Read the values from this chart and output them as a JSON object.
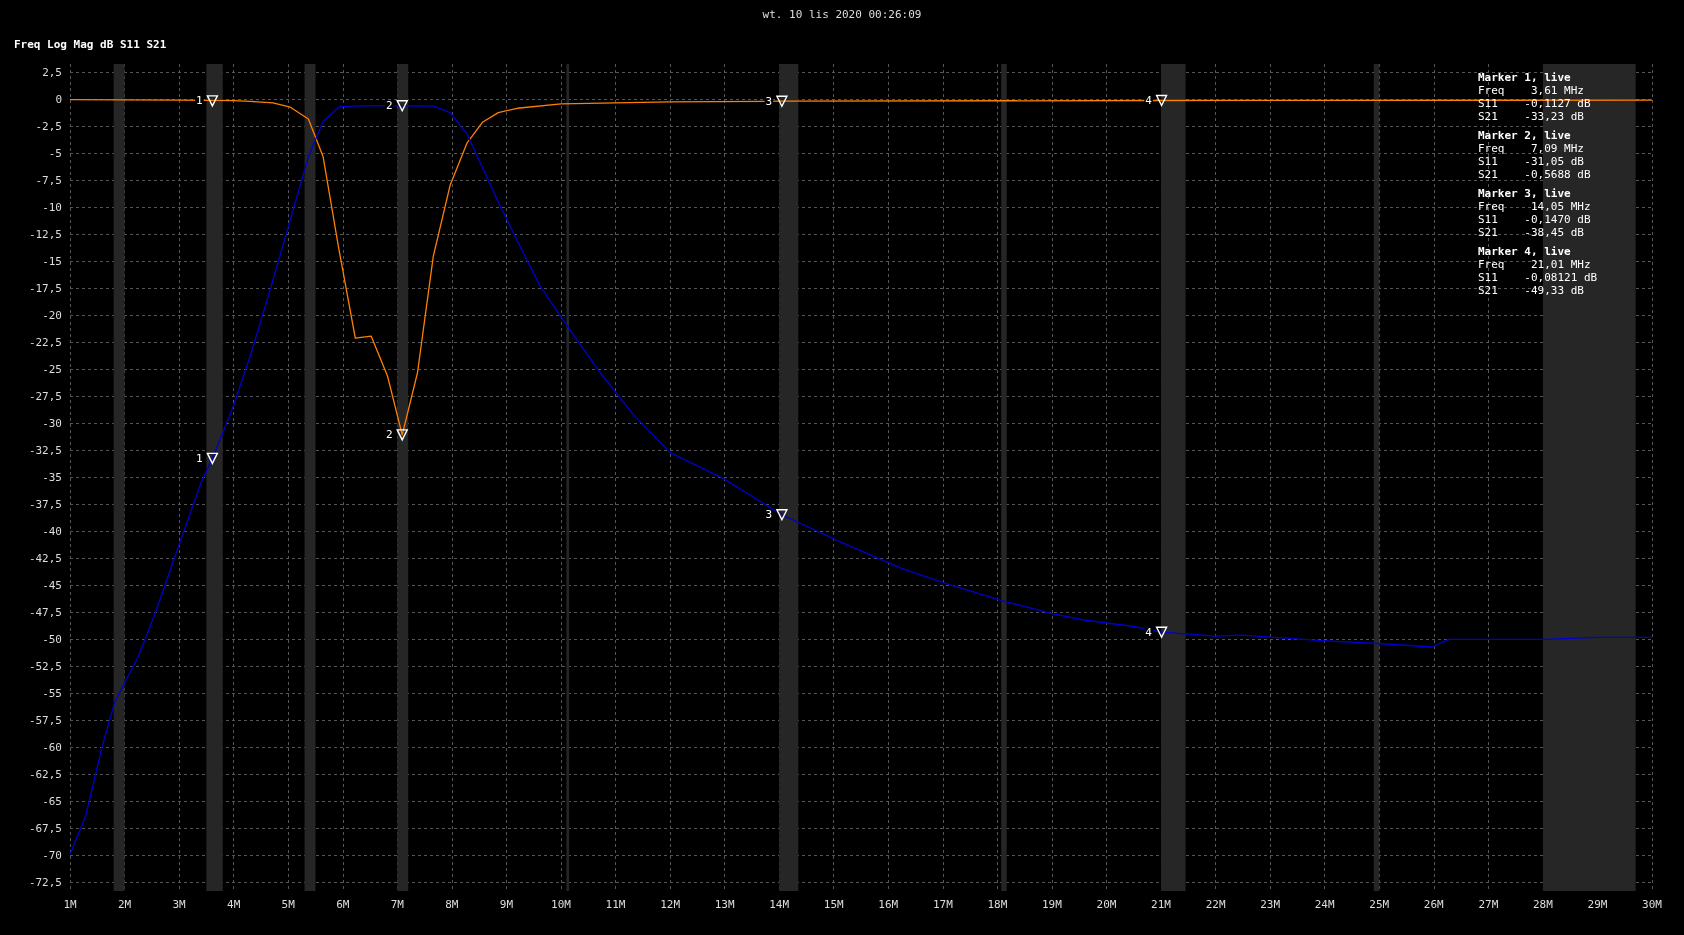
{
  "chart_data": {
    "type": "line",
    "title": "wt. 10 lis 2020 00:26:09",
    "ylabel": "Freq Log Mag dB S11 S21",
    "xlim": [
      1,
      30
    ],
    "ylim": [
      -73.3,
      3.3
    ],
    "xticks": [
      {
        "value": 1,
        "label": "1M"
      },
      {
        "value": 2,
        "label": "2M"
      },
      {
        "value": 3,
        "label": "3M"
      },
      {
        "value": 4,
        "label": "4M"
      },
      {
        "value": 5,
        "label": "5M"
      },
      {
        "value": 6,
        "label": "6M"
      },
      {
        "value": 7,
        "label": "7M"
      },
      {
        "value": 8,
        "label": "8M"
      },
      {
        "value": 9,
        "label": "9M"
      },
      {
        "value": 10,
        "label": "10M"
      },
      {
        "value": 11,
        "label": "11M"
      },
      {
        "value": 12,
        "label": "12M"
      },
      {
        "value": 13,
        "label": "13M"
      },
      {
        "value": 14,
        "label": "14M"
      },
      {
        "value": 15,
        "label": "15M"
      },
      {
        "value": 16,
        "label": "16M"
      },
      {
        "value": 17,
        "label": "17M"
      },
      {
        "value": 18,
        "label": "18M"
      },
      {
        "value": 19,
        "label": "19M"
      },
      {
        "value": 20,
        "label": "20M"
      },
      {
        "value": 21,
        "label": "21M"
      },
      {
        "value": 22,
        "label": "22M"
      },
      {
        "value": 23,
        "label": "23M"
      },
      {
        "value": 24,
        "label": "24M"
      },
      {
        "value": 25,
        "label": "25M"
      },
      {
        "value": 26,
        "label": "26M"
      },
      {
        "value": 27,
        "label": "27M"
      },
      {
        "value": 28,
        "label": "28M"
      },
      {
        "value": 29,
        "label": "29M"
      },
      {
        "value": 30,
        "label": "30M"
      }
    ],
    "yticks": [
      {
        "value": 2.5,
        "label": "2,5"
      },
      0,
      {
        "value": -2.5,
        "label": "-2,5"
      },
      -5,
      {
        "value": -7.5,
        "label": "-7,5"
      },
      -10,
      {
        "value": -12.5,
        "label": "-12,5"
      },
      -15,
      {
        "value": -17.5,
        "label": "-17,5"
      },
      -20,
      {
        "value": -22.5,
        "label": "-22,5"
      },
      -25,
      {
        "value": -27.5,
        "label": "-27,5"
      },
      -30,
      {
        "value": -32.5,
        "label": "-32,5"
      },
      -35,
      {
        "value": -37.5,
        "label": "-37,5"
      },
      -40,
      {
        "value": -42.5,
        "label": "-42,5"
      },
      -45,
      {
        "value": -47.5,
        "label": "-47,5"
      },
      -50,
      {
        "value": -52.5,
        "label": "-52,5"
      },
      -55,
      {
        "value": -57.5,
        "label": "-57,5"
      },
      -60,
      {
        "value": -62.5,
        "label": "-62,5"
      },
      -65,
      {
        "value": -67.5,
        "label": "-67,5"
      },
      -70,
      {
        "value": -72.5,
        "label": "-72,5"
      }
    ],
    "grid": true,
    "marker": "none",
    "line_style": "solid",
    "series": [
      {
        "color": "#ff7f00",
        "x": [
          1,
          3,
          4,
          4.3,
          4.72,
          5.04,
          5.37,
          5.64,
          5.92,
          6.23,
          6.52,
          6.82,
          7.09,
          7.37,
          7.66,
          7.97,
          8.28,
          8.56,
          8.85,
          9.2,
          10,
          12,
          14.05,
          21.01,
          30
        ],
        "values": [
          0,
          -0.05,
          -0.1,
          -0.16,
          -0.3,
          -0.7,
          -1.8,
          -5.3,
          -13.6,
          -22.1,
          -21.9,
          -25.6,
          -31.05,
          -25.3,
          -14.5,
          -7.9,
          -4.0,
          -2.1,
          -1.2,
          -0.8,
          -0.4,
          -0.2,
          -0.147,
          -0.08121,
          -0.05
        ]
      },
      {
        "color": "#0000cc",
        "x": [
          1,
          1.29,
          1.59,
          1.82,
          2.25,
          2.56,
          2.98,
          3.4,
          3.61,
          4.0,
          4.3,
          4.67,
          5.04,
          5.37,
          5.64,
          5.94,
          6.45,
          7.09,
          7.66,
          7.97,
          8.28,
          8.58,
          8.89,
          9.2,
          9.62,
          10.12,
          10.72,
          11.33,
          12.0,
          12.98,
          14.05,
          15.09,
          16.23,
          17.05,
          18.08,
          19.0,
          19.59,
          20.5,
          21.01,
          22.0,
          22.47,
          23.95,
          25.05,
          25.97,
          26.27,
          27.07,
          27.99,
          29.02,
          30
        ],
        "values": [
          -69.9,
          -66.3,
          -59.9,
          -55.8,
          -51.6,
          -47.6,
          -41.5,
          -35.5,
          -33.23,
          -28.3,
          -23.8,
          -17.6,
          -11.1,
          -5.3,
          -2.0,
          -0.65,
          -0.55,
          -0.5688,
          -0.6,
          -1.2,
          -3.2,
          -6.5,
          -9.9,
          -13.1,
          -17.3,
          -21.0,
          -25.3,
          -29.2,
          -32.7,
          -35.1,
          -38.45,
          -40.9,
          -43.4,
          -44.8,
          -46.4,
          -47.6,
          -48.2,
          -48.8,
          -49.33,
          -49.7,
          -49.6,
          -50.1,
          -50.4,
          -50.7,
          -50.0,
          -50.0,
          -50.0,
          -49.8,
          -49.8
        ]
      }
    ],
    "bands": [
      {
        "axis": "x",
        "from": 1.8,
        "to": 2.0,
        "color": "#262626"
      },
      {
        "axis": "x",
        "from": 3.5,
        "to": 3.8,
        "color": "#262626"
      },
      {
        "axis": "x",
        "from": 5.3,
        "to": 5.5,
        "color": "#262626"
      },
      {
        "axis": "x",
        "from": 7.0,
        "to": 7.2,
        "color": "#262626"
      },
      {
        "axis": "x",
        "from": 10.1,
        "to": 10.15,
        "color": "#262626"
      },
      {
        "axis": "x",
        "from": 14.0,
        "to": 14.35,
        "color": "#262626"
      },
      {
        "axis": "x",
        "from": 18.07,
        "to": 18.17,
        "color": "#262626"
      },
      {
        "axis": "x",
        "from": 21.0,
        "to": 21.45,
        "color": "#262626"
      },
      {
        "axis": "x",
        "from": 24.9,
        "to": 25.0,
        "color": "#262626"
      },
      {
        "axis": "x",
        "from": 28.0,
        "to": 29.7,
        "color": "#262626"
      }
    ],
    "annotations": [
      {
        "text": "1",
        "x": 3.61,
        "y": -0.1127
      },
      {
        "text": "1",
        "x": 3.61,
        "y": -33.23
      },
      {
        "text": "2",
        "x": 7.09,
        "y": -0.5688
      },
      {
        "text": "2",
        "x": 7.09,
        "y": -31.05
      },
      {
        "text": "3",
        "x": 14.05,
        "y": -0.147
      },
      {
        "text": "3",
        "x": 14.05,
        "y": -38.45
      },
      {
        "text": "4",
        "x": 21.01,
        "y": -0.08121
      },
      {
        "text": "4",
        "x": 21.01,
        "y": -49.33
      },
      "Marker 1, live",
      "Freq    3,61 MHz",
      "S11    -0,1127 dB",
      "S21    -33,23 dB",
      "Marker 2, live",
      "Freq    7,09 MHz",
      "S11    -31,05 dB",
      "S21    -0,5688 dB",
      "Marker 3, live",
      "Freq    14,05 MHz",
      "S11    -0,1470 dB",
      "S21    -38,45 dB",
      "Marker 4, live",
      "Freq    21,01 MHz",
      "S11    -0,08121 dB",
      "S21    -49,33 dB"
    ]
  }
}
